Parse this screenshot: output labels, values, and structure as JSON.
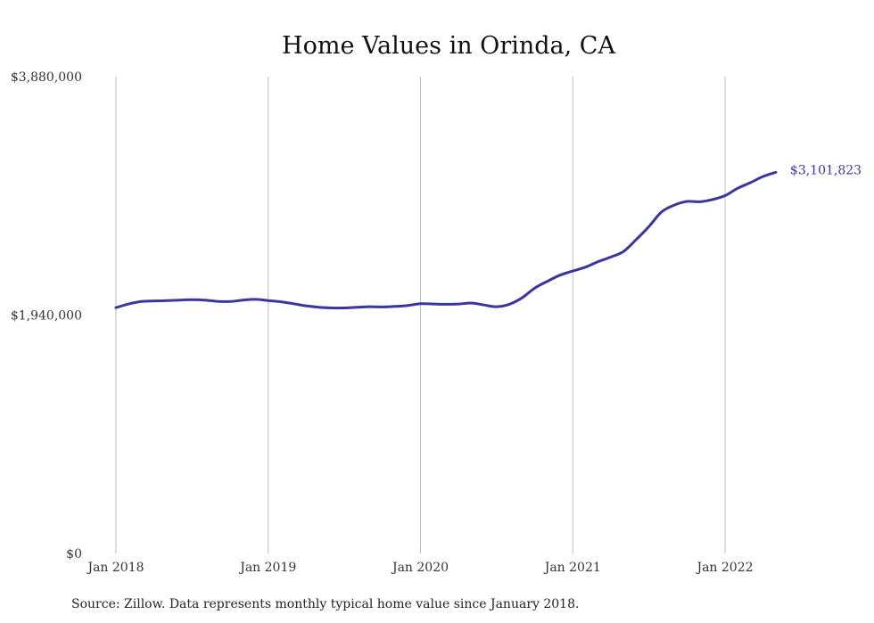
{
  "chart_data": {
    "type": "line",
    "title": "Home Values in Orinda, CA",
    "xlabel": "",
    "ylabel": "",
    "y_ticks": [
      "$0",
      "$1,940,000",
      "$3,880,000"
    ],
    "y_tick_values": [
      0,
      1940000,
      3880000
    ],
    "ylim": [
      0,
      3880000
    ],
    "x_ticks": [
      "Jan 2018",
      "Jan 2019",
      "Jan 2020",
      "Jan 2021",
      "Jan 2022"
    ],
    "x_tick_values": [
      "2018-01",
      "2019-01",
      "2020-01",
      "2021-01",
      "2022-01"
    ],
    "xlim": [
      "2018-01",
      "2022-05"
    ],
    "grid": "vertical lines at each year",
    "series": [
      {
        "color": "#3b35a0",
        "end_label": "$3,101,823",
        "points": [
          [
            "2018-01",
            2000000
          ],
          [
            "2018-02",
            2030000
          ],
          [
            "2018-03",
            2050000
          ],
          [
            "2018-04",
            2055000
          ],
          [
            "2018-05",
            2058000
          ],
          [
            "2018-06",
            2062000
          ],
          [
            "2018-07",
            2065000
          ],
          [
            "2018-08",
            2062000
          ],
          [
            "2018-09",
            2052000
          ],
          [
            "2018-10",
            2050000
          ],
          [
            "2018-11",
            2062000
          ],
          [
            "2018-12",
            2068000
          ],
          [
            "2019-01",
            2058000
          ],
          [
            "2019-02",
            2048000
          ],
          [
            "2019-03",
            2032000
          ],
          [
            "2019-04",
            2015000
          ],
          [
            "2019-05",
            2003000
          ],
          [
            "2019-06",
            1998000
          ],
          [
            "2019-07",
            1998000
          ],
          [
            "2019-08",
            2003000
          ],
          [
            "2019-09",
            2008000
          ],
          [
            "2019-10",
            2006000
          ],
          [
            "2019-11",
            2010000
          ],
          [
            "2019-12",
            2018000
          ],
          [
            "2020-01",
            2032000
          ],
          [
            "2020-02",
            2030000
          ],
          [
            "2020-03",
            2028000
          ],
          [
            "2020-04",
            2030000
          ],
          [
            "2020-05",
            2038000
          ],
          [
            "2020-06",
            2022000
          ],
          [
            "2020-07",
            2008000
          ],
          [
            "2020-08",
            2028000
          ],
          [
            "2020-09",
            2080000
          ],
          [
            "2020-10",
            2160000
          ],
          [
            "2020-11",
            2215000
          ],
          [
            "2020-12",
            2265000
          ],
          [
            "2021-01",
            2298000
          ],
          [
            "2021-02",
            2330000
          ],
          [
            "2021-03",
            2375000
          ],
          [
            "2021-04",
            2412000
          ],
          [
            "2021-05",
            2458000
          ],
          [
            "2021-06",
            2555000
          ],
          [
            "2021-07",
            2660000
          ],
          [
            "2021-08",
            2780000
          ],
          [
            "2021-09",
            2835000
          ],
          [
            "2021-10",
            2865000
          ],
          [
            "2021-11",
            2862000
          ],
          [
            "2021-12",
            2880000
          ],
          [
            "2022-01",
            2912000
          ],
          [
            "2022-02",
            2972000
          ],
          [
            "2022-03",
            3018000
          ],
          [
            "2022-04",
            3068000
          ],
          [
            "2022-05",
            3101823
          ]
        ]
      }
    ]
  },
  "source_note": "Source: Zillow. Data represents monthly typical home value since January 2018."
}
